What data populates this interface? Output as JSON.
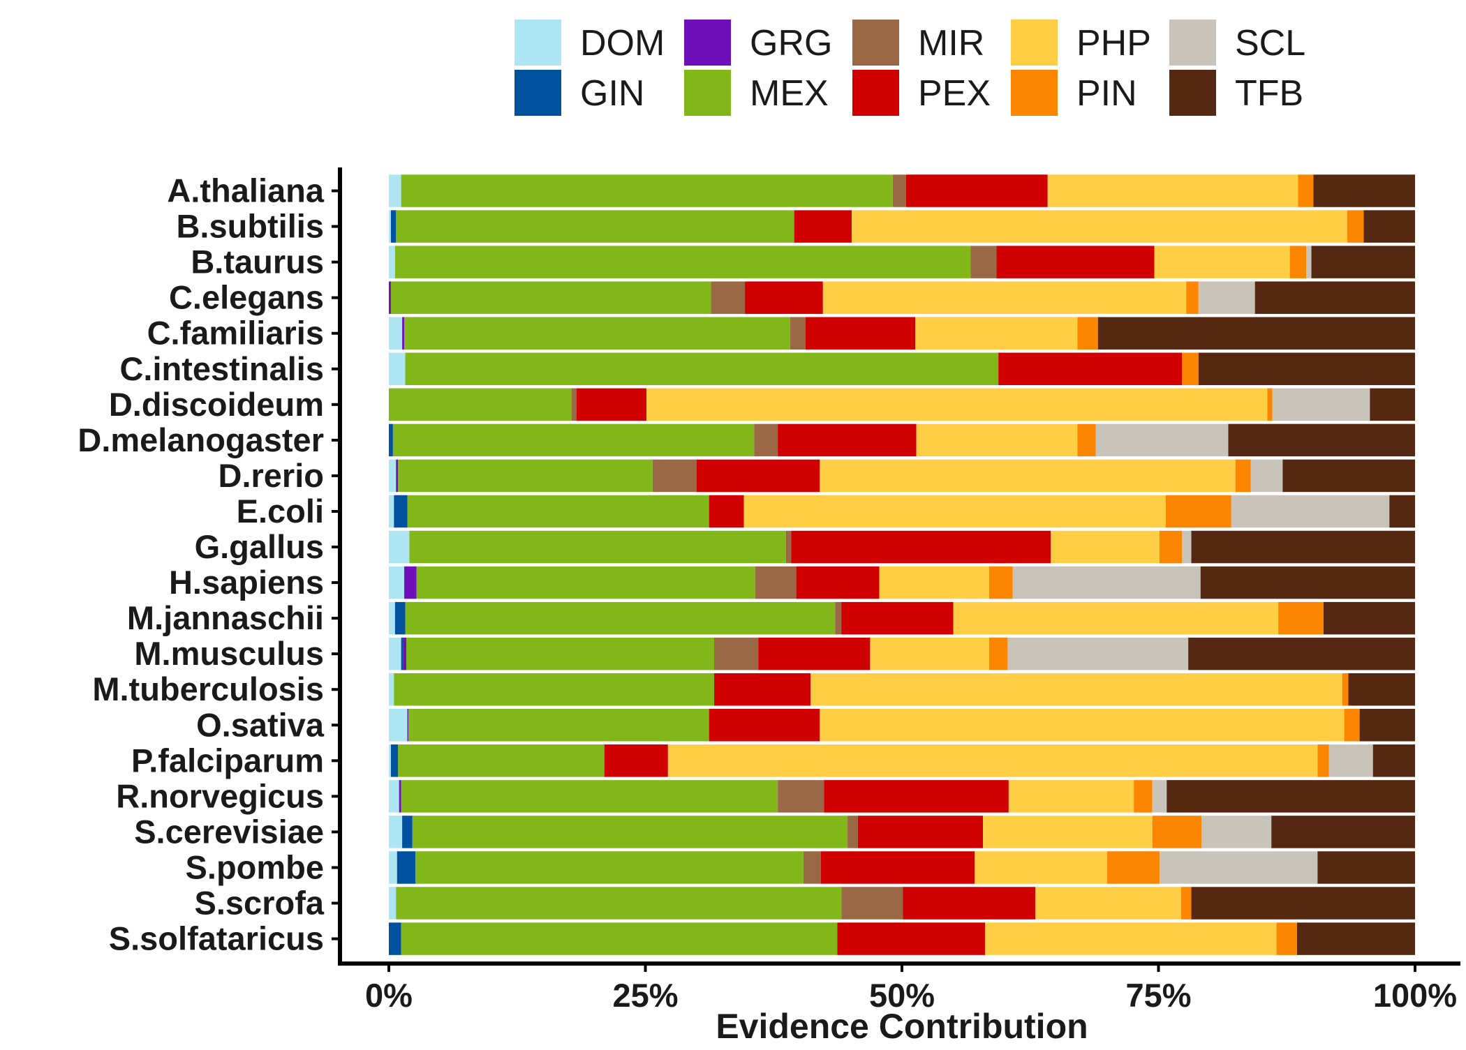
{
  "chart_data": {
    "type": "bar",
    "orientation": "horizontal",
    "stacked": true,
    "xlabel": "Evidence Contribution",
    "ylabel": "",
    "xlim": [
      0,
      100
    ],
    "x_ticks": [
      "0%",
      "25%",
      "50%",
      "75%",
      "100%"
    ],
    "x_tick_values": [
      0,
      25,
      50,
      75,
      100
    ],
    "grid": false,
    "legend_position": "top",
    "categories": [
      "A.thaliana",
      "B.subtilis",
      "B.taurus",
      "C.elegans",
      "C.familiaris",
      "C.intestinalis",
      "D.discoideum",
      "D.melanogaster",
      "D.rerio",
      "E.coli",
      "G.gallus",
      "H.sapiens",
      "M.jannaschii",
      "M.musculus",
      "M.tuberculosis",
      "O.sativa",
      "P.falciparum",
      "R.norvegicus",
      "S.cerevisiae",
      "S.pombe",
      "S.scrofa",
      "S.solfataricus"
    ],
    "series": [
      {
        "name": "DOM",
        "color": "#ADE6F2",
        "values": [
          1.2,
          0.2,
          0.6,
          0.0,
          1.3,
          1.6,
          0.0,
          0.0,
          0.7,
          0.5,
          2.0,
          1.5,
          0.6,
          1.2,
          0.5,
          1.8,
          0.2,
          1.0,
          1.3,
          0.8,
          0.7,
          0.0
        ]
      },
      {
        "name": "GIN",
        "color": "#00519E",
        "values": [
          0.0,
          0.5,
          0.0,
          0.0,
          0.0,
          0.0,
          0.0,
          0.4,
          0.0,
          1.3,
          0.0,
          0.0,
          1.0,
          0.2,
          0.0,
          0.0,
          0.7,
          0.0,
          1.0,
          1.8,
          0.0,
          1.2
        ]
      },
      {
        "name": "GRG",
        "color": "#6E0FBA",
        "values": [
          0.0,
          0.0,
          0.0,
          0.2,
          0.2,
          0.0,
          0.0,
          0.0,
          0.2,
          0.0,
          0.0,
          1.2,
          0.0,
          0.3,
          0.0,
          0.1,
          0.0,
          0.2,
          0.0,
          0.0,
          0.0,
          0.0
        ]
      },
      {
        "name": "MEX",
        "color": "#82B71A",
        "values": [
          47.9,
          38.8,
          56.1,
          31.2,
          37.6,
          57.8,
          17.8,
          35.2,
          24.8,
          29.4,
          36.7,
          33.0,
          41.8,
          30.0,
          31.2,
          29.3,
          20.1,
          36.7,
          42.4,
          37.8,
          43.4,
          42.5
        ]
      },
      {
        "name": "MIR",
        "color": "#9B6845",
        "values": [
          1.3,
          0.0,
          2.5,
          3.3,
          1.5,
          0.0,
          0.5,
          2.3,
          4.3,
          0.0,
          0.5,
          4.0,
          0.6,
          4.3,
          0.0,
          0.0,
          0.0,
          4.5,
          1.0,
          1.7,
          6.0,
          0.0
        ]
      },
      {
        "name": "PEX",
        "color": "#D10000",
        "values": [
          13.8,
          5.6,
          15.4,
          7.6,
          10.7,
          17.9,
          6.8,
          13.5,
          12.0,
          3.4,
          25.3,
          8.1,
          10.9,
          10.9,
          9.4,
          10.8,
          6.2,
          18.0,
          12.2,
          15.0,
          12.9,
          14.4
        ]
      },
      {
        "name": "PHP",
        "color": "#FFCE45",
        "values": [
          24.4,
          48.3,
          13.2,
          35.4,
          15.8,
          0.0,
          60.5,
          15.7,
          40.5,
          41.1,
          10.6,
          10.7,
          31.6,
          11.6,
          51.8,
          51.1,
          63.3,
          12.2,
          16.5,
          12.9,
          14.2,
          28.4
        ]
      },
      {
        "name": "PIN",
        "color": "#FC8600",
        "values": [
          1.5,
          1.6,
          1.6,
          1.2,
          2.0,
          1.6,
          0.5,
          1.8,
          1.5,
          6.4,
          2.2,
          2.3,
          4.4,
          1.8,
          0.6,
          1.5,
          1.1,
          1.8,
          4.8,
          5.1,
          1.0,
          2.0
        ]
      },
      {
        "name": "SCL",
        "color": "#C8C4BA",
        "values": [
          0.0,
          0.0,
          0.5,
          5.5,
          0.0,
          0.0,
          9.5,
          12.9,
          3.1,
          15.4,
          0.9,
          18.3,
          0.0,
          17.6,
          0.0,
          0.0,
          4.3,
          1.4,
          6.8,
          15.4,
          0.0,
          0.0
        ]
      },
      {
        "name": "TFB",
        "color": "#552811",
        "values": [
          9.9,
          5.0,
          10.1,
          15.6,
          30.9,
          21.1,
          4.4,
          18.2,
          12.9,
          2.5,
          21.8,
          20.9,
          8.9,
          22.1,
          6.5,
          5.4,
          4.1,
          24.2,
          14.0,
          9.5,
          21.8,
          11.5
        ]
      }
    ]
  }
}
